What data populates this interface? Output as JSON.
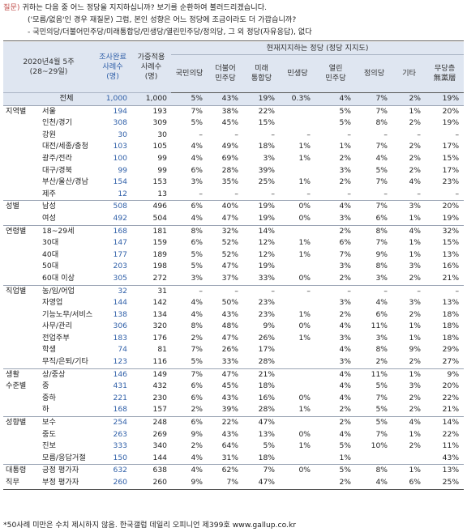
{
  "question": {
    "tag": "질문)",
    "line1": "귀하는 다음 중 어느 정당을 지지하십니까? 보기를 순환하여 불러드리겠습니다.",
    "line2": "('모름/없음'인 경우 재질문) 그럼, 본인 성향은 어느 정당에 조금이라도 더 가깝습니까?",
    "line3": "- 국민의당/더불어민주당/미래통합당/민생당/열린민주당/정의당, 그 외 정당(자유응답), 없다"
  },
  "header": {
    "date": "2020년4월 5주",
    "date_range": "(28~29일)",
    "surveyed_1": "조사완료",
    "surveyed_2": "사례수",
    "surveyed_3": "(명)",
    "weighted_1": "가중적용",
    "weighted_2": "사례수",
    "weighted_3": "(명)",
    "group_title": "현재지지하는 정당 (정당 지지도)",
    "parties": [
      {
        "l1": "국민의당",
        "l2": ""
      },
      {
        "l1": "더불어",
        "l2": "민주당"
      },
      {
        "l1": "미래",
        "l2": "통합당"
      },
      {
        "l1": "민생당",
        "l2": ""
      },
      {
        "l1": "열린",
        "l2": "민주당"
      },
      {
        "l1": "정의당",
        "l2": ""
      },
      {
        "l1": "기타",
        "l2": ""
      },
      {
        "l1": "무당층",
        "l2": "無黨層"
      }
    ]
  },
  "rows": [
    {
      "group": "",
      "label": "전체",
      "n": "1,000",
      "w": "1,000",
      "v": [
        "5%",
        "43%",
        "19%",
        "0.3%",
        "4%",
        "7%",
        "2%",
        "19%"
      ]
    },
    {
      "group": "지역별",
      "label": "서울",
      "n": "194",
      "w": "193",
      "v": [
        "7%",
        "38%",
        "22%",
        "",
        "5%",
        "7%",
        "1%",
        "20%"
      ]
    },
    {
      "group": "",
      "label": "인천/경기",
      "n": "308",
      "w": "309",
      "v": [
        "5%",
        "45%",
        "15%",
        "",
        "5%",
        "8%",
        "2%",
        "19%"
      ]
    },
    {
      "group": "",
      "label": "강원",
      "n": "30",
      "w": "30",
      "v": [
        "–",
        "–",
        "–",
        "–",
        "–",
        "–",
        "–",
        "–"
      ]
    },
    {
      "group": "",
      "label": "대전/세종/충청",
      "n": "103",
      "w": "105",
      "v": [
        "4%",
        "49%",
        "18%",
        "1%",
        "1%",
        "7%",
        "2%",
        "17%"
      ]
    },
    {
      "group": "",
      "label": "광주/전라",
      "n": "100",
      "w": "99",
      "v": [
        "4%",
        "69%",
        "3%",
        "1%",
        "2%",
        "4%",
        "2%",
        "15%"
      ]
    },
    {
      "group": "",
      "label": "대구/경북",
      "n": "99",
      "w": "99",
      "v": [
        "6%",
        "28%",
        "39%",
        "",
        "3%",
        "5%",
        "2%",
        "17%"
      ]
    },
    {
      "group": "",
      "label": "부산/울산/경남",
      "n": "154",
      "w": "153",
      "v": [
        "3%",
        "35%",
        "25%",
        "1%",
        "2%",
        "7%",
        "4%",
        "23%"
      ]
    },
    {
      "group": "",
      "label": "제주",
      "n": "12",
      "w": "13",
      "v": [
        "–",
        "–",
        "–",
        "–",
        "–",
        "–",
        "–",
        "–"
      ]
    },
    {
      "group": "성별",
      "label": "남성",
      "n": "508",
      "w": "496",
      "v": [
        "6%",
        "40%",
        "19%",
        "0%",
        "4%",
        "7%",
        "3%",
        "20%"
      ]
    },
    {
      "group": "",
      "label": "여성",
      "n": "492",
      "w": "504",
      "v": [
        "4%",
        "47%",
        "19%",
        "0%",
        "3%",
        "6%",
        "1%",
        "19%"
      ]
    },
    {
      "group": "연령별",
      "label": "18~29세",
      "n": "168",
      "w": "181",
      "v": [
        "8%",
        "32%",
        "14%",
        "",
        "2%",
        "8%",
        "4%",
        "32%"
      ]
    },
    {
      "group": "",
      "label": "30대",
      "n": "147",
      "w": "159",
      "v": [
        "6%",
        "52%",
        "12%",
        "1%",
        "6%",
        "7%",
        "1%",
        "15%"
      ]
    },
    {
      "group": "",
      "label": "40대",
      "n": "177",
      "w": "189",
      "v": [
        "5%",
        "52%",
        "12%",
        "1%",
        "7%",
        "9%",
        "1%",
        "13%"
      ]
    },
    {
      "group": "",
      "label": "50대",
      "n": "203",
      "w": "198",
      "v": [
        "5%",
        "47%",
        "19%",
        "",
        "3%",
        "8%",
        "3%",
        "16%"
      ]
    },
    {
      "group": "",
      "label": "60대 이상",
      "n": "305",
      "w": "272",
      "v": [
        "3%",
        "37%",
        "33%",
        "0%",
        "2%",
        "3%",
        "2%",
        "21%"
      ]
    },
    {
      "group": "직업별",
      "label": "농/임/어업",
      "n": "32",
      "w": "31",
      "v": [
        "–",
        "–",
        "–",
        "–",
        "–",
        "–",
        "–",
        "–"
      ]
    },
    {
      "group": "",
      "label": "자영업",
      "n": "144",
      "w": "142",
      "v": [
        "4%",
        "50%",
        "23%",
        "",
        "3%",
        "4%",
        "3%",
        "13%"
      ]
    },
    {
      "group": "",
      "label": "기능노무/서비스",
      "n": "138",
      "w": "134",
      "v": [
        "4%",
        "43%",
        "23%",
        "1%",
        "2%",
        "6%",
        "2%",
        "18%"
      ]
    },
    {
      "group": "",
      "label": "사무/관리",
      "n": "306",
      "w": "320",
      "v": [
        "8%",
        "48%",
        "9%",
        "0%",
        "4%",
        "11%",
        "1%",
        "18%"
      ]
    },
    {
      "group": "",
      "label": "전업주부",
      "n": "183",
      "w": "176",
      "v": [
        "2%",
        "47%",
        "26%",
        "1%",
        "3%",
        "3%",
        "1%",
        "18%"
      ]
    },
    {
      "group": "",
      "label": "학생",
      "n": "74",
      "w": "81",
      "v": [
        "7%",
        "26%",
        "17%",
        "",
        "4%",
        "8%",
        "9%",
        "29%"
      ]
    },
    {
      "group": "",
      "label": "무직/은퇴/기타",
      "n": "123",
      "w": "116",
      "v": [
        "5%",
        "33%",
        "28%",
        "",
        "3%",
        "2%",
        "2%",
        "27%"
      ]
    },
    {
      "group": "생활",
      "label": "상/중상",
      "n": "146",
      "w": "149",
      "v": [
        "7%",
        "47%",
        "21%",
        "",
        "4%",
        "11%",
        "1%",
        "9%"
      ]
    },
    {
      "group": "수준별",
      "label": "중",
      "n": "431",
      "w": "432",
      "v": [
        "6%",
        "45%",
        "18%",
        "",
        "4%",
        "5%",
        "3%",
        "20%"
      ]
    },
    {
      "group": "",
      "label": "중하",
      "n": "221",
      "w": "230",
      "v": [
        "6%",
        "43%",
        "16%",
        "0%",
        "4%",
        "7%",
        "2%",
        "22%"
      ]
    },
    {
      "group": "",
      "label": "하",
      "n": "168",
      "w": "157",
      "v": [
        "2%",
        "39%",
        "28%",
        "1%",
        "2%",
        "5%",
        "2%",
        "21%"
      ]
    },
    {
      "group": "성향별",
      "label": "보수",
      "n": "254",
      "w": "248",
      "v": [
        "6%",
        "22%",
        "47%",
        "",
        "2%",
        "5%",
        "4%",
        "14%"
      ]
    },
    {
      "group": "",
      "label": "중도",
      "n": "263",
      "w": "269",
      "v": [
        "9%",
        "43%",
        "13%",
        "0%",
        "4%",
        "7%",
        "1%",
        "22%"
      ]
    },
    {
      "group": "",
      "label": "진보",
      "n": "333",
      "w": "340",
      "v": [
        "2%",
        "64%",
        "5%",
        "1%",
        "5%",
        "10%",
        "2%",
        "11%"
      ]
    },
    {
      "group": "",
      "label": "모름/응답거절",
      "n": "150",
      "w": "144",
      "v": [
        "4%",
        "31%",
        "18%",
        "",
        "1%",
        "",
        "",
        "43%"
      ]
    },
    {
      "group": "대통령",
      "label": "긍정 평가자",
      "n": "632",
      "w": "638",
      "v": [
        "4%",
        "62%",
        "7%",
        "0%",
        "5%",
        "8%",
        "1%",
        "13%"
      ]
    },
    {
      "group": "직무",
      "label": "부정 평가자",
      "n": "260",
      "w": "260",
      "v": [
        "9%",
        "7%",
        "47%",
        "",
        "2%",
        "4%",
        "6%",
        "25%"
      ]
    }
  ],
  "footnote": "*50사례 미만은 수치 제시하지 않음. 한국갤럽 데일리 오피니언 제399호 www.gallup.co.kr"
}
